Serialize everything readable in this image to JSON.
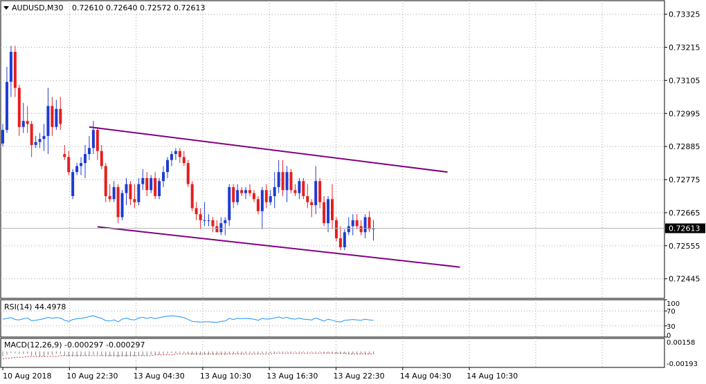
{
  "header": {
    "symbol": "AUDUSD,M30",
    "ohlc": "0.72610 0.72640 0.72572 0.72613"
  },
  "chart_data": {
    "type": "candlestick",
    "symbol": "AUDUSD",
    "timeframe": "M30",
    "price_axis": {
      "ticks": [
        "0.73325",
        "0.73215",
        "0.73105",
        "0.72995",
        "0.72885",
        "0.72775",
        "0.72665",
        "0.72555",
        "0.72445"
      ],
      "min": 0.7238,
      "max": 0.7337,
      "current_price": "0.72613"
    },
    "time_axis": {
      "labels": [
        "10 Aug 2018",
        "10 Aug 22:30",
        "13 Aug 04:30",
        "13 Aug 10:30",
        "13 Aug 16:30",
        "13 Aug 22:30",
        "14 Aug 04:30",
        "14 Aug 10:30"
      ]
    },
    "candles": [
      {
        "o": 0.72895,
        "h": 0.7296,
        "l": 0.72885,
        "c": 0.7294
      },
      {
        "o": 0.7294,
        "h": 0.7315,
        "l": 0.7293,
        "c": 0.731
      },
      {
        "o": 0.731,
        "h": 0.7322,
        "l": 0.7305,
        "c": 0.732
      },
      {
        "o": 0.732,
        "h": 0.7322,
        "l": 0.7305,
        "c": 0.7308
      },
      {
        "o": 0.7308,
        "h": 0.7309,
        "l": 0.7292,
        "c": 0.7295
      },
      {
        "o": 0.7295,
        "h": 0.7303,
        "l": 0.7293,
        "c": 0.7297
      },
      {
        "o": 0.7297,
        "h": 0.7302,
        "l": 0.7293,
        "c": 0.7296
      },
      {
        "o": 0.7296,
        "h": 0.7297,
        "l": 0.7285,
        "c": 0.7289
      },
      {
        "o": 0.7289,
        "h": 0.7292,
        "l": 0.7288,
        "c": 0.729
      },
      {
        "o": 0.729,
        "h": 0.7293,
        "l": 0.7288,
        "c": 0.7291
      },
      {
        "o": 0.7291,
        "h": 0.7296,
        "l": 0.7287,
        "c": 0.7292
      },
      {
        "o": 0.7292,
        "h": 0.7308,
        "l": 0.7286,
        "c": 0.7302
      },
      {
        "o": 0.7302,
        "h": 0.7305,
        "l": 0.7292,
        "c": 0.7295
      },
      {
        "o": 0.7295,
        "h": 0.7304,
        "l": 0.7294,
        "c": 0.7301
      },
      {
        "o": 0.7301,
        "h": 0.7305,
        "l": 0.7294,
        "c": 0.7296
      },
      {
        "o": 0.7286,
        "h": 0.7289,
        "l": 0.7284,
        "c": 0.7285
      },
      {
        "o": 0.7285,
        "h": 0.7287,
        "l": 0.7279,
        "c": 0.728
      },
      {
        "o": 0.7272,
        "h": 0.7281,
        "l": 0.7271,
        "c": 0.728
      },
      {
        "o": 0.728,
        "h": 0.7283,
        "l": 0.7279,
        "c": 0.7282
      },
      {
        "o": 0.7282,
        "h": 0.7285,
        "l": 0.7279,
        "c": 0.7283
      },
      {
        "o": 0.7283,
        "h": 0.7289,
        "l": 0.7278,
        "c": 0.7286
      },
      {
        "o": 0.7286,
        "h": 0.7292,
        "l": 0.7284,
        "c": 0.7288
      },
      {
        "o": 0.7288,
        "h": 0.7297,
        "l": 0.7286,
        "c": 0.7294
      },
      {
        "o": 0.7294,
        "h": 0.7295,
        "l": 0.7284,
        "c": 0.7287
      },
      {
        "o": 0.7287,
        "h": 0.7289,
        "l": 0.7281,
        "c": 0.7282
      },
      {
        "o": 0.7282,
        "h": 0.7283,
        "l": 0.727,
        "c": 0.7272
      },
      {
        "o": 0.7272,
        "h": 0.7276,
        "l": 0.727,
        "c": 0.7271
      },
      {
        "o": 0.7271,
        "h": 0.7277,
        "l": 0.727,
        "c": 0.7275
      },
      {
        "o": 0.7275,
        "h": 0.7276,
        "l": 0.7263,
        "c": 0.7265
      },
      {
        "o": 0.7265,
        "h": 0.7274,
        "l": 0.7264,
        "c": 0.7273
      },
      {
        "o": 0.7273,
        "h": 0.7278,
        "l": 0.7269,
        "c": 0.7276
      },
      {
        "o": 0.7276,
        "h": 0.7277,
        "l": 0.7269,
        "c": 0.7271
      },
      {
        "o": 0.7271,
        "h": 0.7276,
        "l": 0.7268,
        "c": 0.727
      },
      {
        "o": 0.727,
        "h": 0.7278,
        "l": 0.7269,
        "c": 0.7276
      },
      {
        "o": 0.7276,
        "h": 0.7281,
        "l": 0.7274,
        "c": 0.7278
      },
      {
        "o": 0.7278,
        "h": 0.728,
        "l": 0.7272,
        "c": 0.7274
      },
      {
        "o": 0.7274,
        "h": 0.7279,
        "l": 0.7273,
        "c": 0.7278
      },
      {
        "o": 0.7278,
        "h": 0.728,
        "l": 0.7271,
        "c": 0.7272
      },
      {
        "o": 0.7272,
        "h": 0.7278,
        "l": 0.7271,
        "c": 0.7277
      },
      {
        "o": 0.7277,
        "h": 0.7282,
        "l": 0.7275,
        "c": 0.728
      },
      {
        "o": 0.728,
        "h": 0.7285,
        "l": 0.7278,
        "c": 0.7284
      },
      {
        "o": 0.7284,
        "h": 0.7287,
        "l": 0.7282,
        "c": 0.7286
      },
      {
        "o": 0.7286,
        "h": 0.7288,
        "l": 0.7284,
        "c": 0.7287
      },
      {
        "o": 0.7287,
        "h": 0.7288,
        "l": 0.7283,
        "c": 0.7285
      },
      {
        "o": 0.7285,
        "h": 0.7287,
        "l": 0.7282,
        "c": 0.7283
      },
      {
        "o": 0.7283,
        "h": 0.7284,
        "l": 0.7275,
        "c": 0.7276
      },
      {
        "o": 0.7276,
        "h": 0.7277,
        "l": 0.7267,
        "c": 0.7268
      },
      {
        "o": 0.7268,
        "h": 0.727,
        "l": 0.7264,
        "c": 0.7266
      },
      {
        "o": 0.7266,
        "h": 0.7268,
        "l": 0.7261,
        "c": 0.7264
      },
      {
        "o": 0.7264,
        "h": 0.727,
        "l": 0.7262,
        "c": 0.7264
      },
      {
        "o": 0.7264,
        "h": 0.7266,
        "l": 0.7262,
        "c": 0.7264
      },
      {
        "o": 0.7264,
        "h": 0.7265,
        "l": 0.726,
        "c": 0.7262
      },
      {
        "o": 0.7262,
        "h": 0.7264,
        "l": 0.726,
        "c": 0.726
      },
      {
        "o": 0.726,
        "h": 0.7265,
        "l": 0.7259,
        "c": 0.7263
      },
      {
        "o": 0.7263,
        "h": 0.7265,
        "l": 0.7259,
        "c": 0.7264
      },
      {
        "o": 0.7264,
        "h": 0.7276,
        "l": 0.7262,
        "c": 0.7275
      },
      {
        "o": 0.7275,
        "h": 0.7276,
        "l": 0.7268,
        "c": 0.727
      },
      {
        "o": 0.727,
        "h": 0.7276,
        "l": 0.7269,
        "c": 0.7274
      },
      {
        "o": 0.7274,
        "h": 0.7275,
        "l": 0.7272,
        "c": 0.7273
      },
      {
        "o": 0.7273,
        "h": 0.7275,
        "l": 0.7271,
        "c": 0.7274
      },
      {
        "o": 0.7274,
        "h": 0.7276,
        "l": 0.7272,
        "c": 0.7273
      },
      {
        "o": 0.7273,
        "h": 0.7274,
        "l": 0.727,
        "c": 0.7271
      },
      {
        "o": 0.7271,
        "h": 0.7272,
        "l": 0.7266,
        "c": 0.7267
      },
      {
        "o": 0.7267,
        "h": 0.7275,
        "l": 0.7261,
        "c": 0.7274
      },
      {
        "o": 0.7274,
        "h": 0.7276,
        "l": 0.7268,
        "c": 0.727
      },
      {
        "o": 0.727,
        "h": 0.7274,
        "l": 0.7269,
        "c": 0.7272
      },
      {
        "o": 0.7272,
        "h": 0.728,
        "l": 0.7268,
        "c": 0.7275
      },
      {
        "o": 0.7275,
        "h": 0.7284,
        "l": 0.7273,
        "c": 0.728
      },
      {
        "o": 0.728,
        "h": 0.7284,
        "l": 0.7272,
        "c": 0.7274
      },
      {
        "o": 0.7274,
        "h": 0.7282,
        "l": 0.727,
        "c": 0.728
      },
      {
        "o": 0.728,
        "h": 0.7281,
        "l": 0.7273,
        "c": 0.7274
      },
      {
        "o": 0.7274,
        "h": 0.7276,
        "l": 0.7272,
        "c": 0.7273
      },
      {
        "o": 0.7273,
        "h": 0.7278,
        "l": 0.7271,
        "c": 0.7277
      },
      {
        "o": 0.7277,
        "h": 0.7278,
        "l": 0.7271,
        "c": 0.7272
      },
      {
        "o": 0.7272,
        "h": 0.7276,
        "l": 0.7268,
        "c": 0.727
      },
      {
        "o": 0.727,
        "h": 0.7271,
        "l": 0.7265,
        "c": 0.7269
      },
      {
        "o": 0.7269,
        "h": 0.7282,
        "l": 0.7266,
        "c": 0.7277
      },
      {
        "o": 0.7277,
        "h": 0.7278,
        "l": 0.7268,
        "c": 0.727
      },
      {
        "o": 0.727,
        "h": 0.7272,
        "l": 0.7262,
        "c": 0.7263
      },
      {
        "o": 0.7263,
        "h": 0.7272,
        "l": 0.726,
        "c": 0.7271
      },
      {
        "o": 0.7271,
        "h": 0.7276,
        "l": 0.7261,
        "c": 0.7264
      },
      {
        "o": 0.7264,
        "h": 0.7265,
        "l": 0.7257,
        "c": 0.7258
      },
      {
        "o": 0.7258,
        "h": 0.7262,
        "l": 0.7254,
        "c": 0.7255
      },
      {
        "o": 0.7255,
        "h": 0.7261,
        "l": 0.7254,
        "c": 0.726
      },
      {
        "o": 0.726,
        "h": 0.7265,
        "l": 0.7259,
        "c": 0.7262
      },
      {
        "o": 0.7262,
        "h": 0.7266,
        "l": 0.7259,
        "c": 0.7264
      },
      {
        "o": 0.7264,
        "h": 0.7266,
        "l": 0.7261,
        "c": 0.7262
      },
      {
        "o": 0.7262,
        "h": 0.7264,
        "l": 0.7259,
        "c": 0.726
      },
      {
        "o": 0.726,
        "h": 0.7266,
        "l": 0.7258,
        "c": 0.7265
      },
      {
        "o": 0.7265,
        "h": 0.7267,
        "l": 0.726,
        "c": 0.7261
      },
      {
        "o": 0.7261,
        "h": 0.7264,
        "l": 0.72572,
        "c": 0.72613
      }
    ],
    "channel": {
      "color": "#800080",
      "upper": [
        {
          "bar": 21,
          "price": 0.7295
        },
        {
          "bar": 108,
          "price": 0.728
        }
      ],
      "lower": [
        {
          "bar": 23,
          "price": 0.72618
        },
        {
          "bar": 111,
          "price": 0.72484
        }
      ]
    },
    "rsi": {
      "label": "RSI(14) 44.4978",
      "ticks": [
        "100",
        "70",
        "30",
        "0"
      ],
      "min": 0,
      "max": 100,
      "levels": [
        70,
        30
      ],
      "values": [
        48,
        50,
        52,
        47,
        46,
        49,
        51,
        44,
        45,
        47,
        49,
        53,
        50,
        52,
        51,
        45,
        42,
        47,
        49,
        50,
        52,
        55,
        57,
        53,
        50,
        44,
        43,
        46,
        41,
        48,
        51,
        47,
        46,
        51,
        53,
        50,
        53,
        49,
        52,
        54,
        56,
        57,
        56,
        54,
        52,
        47,
        42,
        41,
        40,
        41,
        41,
        40,
        39,
        42,
        43,
        50,
        47,
        50,
        49,
        50,
        49,
        48,
        45,
        50,
        48,
        49,
        51,
        54,
        50,
        53,
        49,
        48,
        51,
        48,
        47,
        46,
        51,
        47,
        43,
        48,
        45,
        42,
        40,
        45,
        46,
        47,
        46,
        45,
        48,
        46,
        45
      ]
    },
    "macd": {
      "label": "MACD(12,26,9) -0.000297 -0.000297",
      "ticks": [
        "0.00158",
        "-0.00193"
      ],
      "min": -0.00193,
      "max": 0.00158,
      "hist": [
        -0.0006,
        -0.0004,
        -0.0002,
        -0.0002,
        -0.0003,
        -0.0003,
        -0.0003,
        -0.0005,
        -0.0005,
        -0.0006,
        -0.0006,
        -0.0004,
        -0.0004,
        -0.0003,
        -0.0003,
        -0.0005,
        -0.0006,
        -0.0006,
        -0.0006,
        -0.0006,
        -0.0005,
        -0.0005,
        -0.0004,
        -0.0004,
        -0.0005,
        -0.0006,
        -0.0006,
        -0.0006,
        -0.0007,
        -0.0006,
        -0.0006,
        -0.0006,
        -0.0006,
        -0.0005,
        -0.0005,
        -0.0005,
        -0.0004,
        -0.0004,
        -0.0004,
        -0.0003,
        -0.0003,
        -0.0002,
        -0.0002,
        -0.0002,
        -0.0002,
        -0.0003,
        -0.0004,
        -0.0004,
        -0.0004,
        -0.0004,
        -0.0004,
        -0.0004,
        -0.0004,
        -0.0004,
        -0.0004,
        -0.0003,
        -0.0003,
        -0.0003,
        -0.0003,
        -0.0002,
        -0.0002,
        -0.0002,
        -0.0003,
        -0.0002,
        -0.0002,
        -0.0002,
        -0.0002,
        -0.0001,
        -0.0001,
        -0.0001,
        -0.0001,
        -0.0001,
        -0.0001,
        -0.0001,
        -0.0001,
        -0.0001,
        -0.0001,
        -0.0001,
        -0.0002,
        -0.0002,
        -0.0002,
        -0.0003,
        -0.0003,
        -0.0003,
        -0.0003,
        -0.0003,
        -0.0003,
        -0.0003,
        -0.0003,
        -0.0003,
        -0.0003
      ],
      "signal": [
        -0.0009,
        -0.0008,
        -0.0008,
        -0.0007,
        -0.0007,
        -0.0007,
        -0.0006,
        -0.0006,
        -0.0006,
        -0.0006,
        -0.0006,
        -0.0006,
        -0.0006,
        -0.0006,
        -0.0005,
        -0.0005,
        -0.0005,
        -0.0005,
        -0.0005,
        -0.0005,
        -0.0005,
        -0.0005,
        -0.0005,
        -0.0005,
        -0.0005,
        -0.0005,
        -0.0005,
        -0.0005,
        -0.0005,
        -0.0005,
        -0.0005,
        -0.0005,
        -0.0005,
        -0.0005,
        -0.0005,
        -0.0005,
        -0.0005,
        -0.0004,
        -0.0004,
        -0.0004,
        -0.0004,
        -0.0004,
        -0.0003,
        -0.0003,
        -0.0003,
        -0.0003,
        -0.0003,
        -0.0003,
        -0.0003,
        -0.0003,
        -0.0003,
        -0.0003,
        -0.0003,
        -0.0003,
        -0.0003,
        -0.0003,
        -0.0003,
        -0.0003,
        -0.0003,
        -0.0003,
        -0.0003,
        -0.0003,
        -0.0003,
        -0.0003,
        -0.0003,
        -0.0003,
        -0.0002,
        -0.0002,
        -0.0002,
        -0.0002,
        -0.0002,
        -0.0002,
        -0.0002,
        -0.0002,
        -0.0002,
        -0.0002,
        -0.0002,
        -0.0002,
        -0.0002,
        -0.0002,
        -0.0002,
        -0.0002,
        -0.0002,
        -0.0002,
        -0.0003,
        -0.0003,
        -0.0003,
        -0.0003,
        -0.0003,
        -0.0003,
        -0.0003
      ]
    },
    "colors": {
      "bull": "#1e3cd2",
      "bear": "#e61e1e",
      "channel": "#800080",
      "rsi_line": "#1e90ff",
      "macd_signal": "#c83232",
      "grid": "#9aa0a6"
    }
  }
}
